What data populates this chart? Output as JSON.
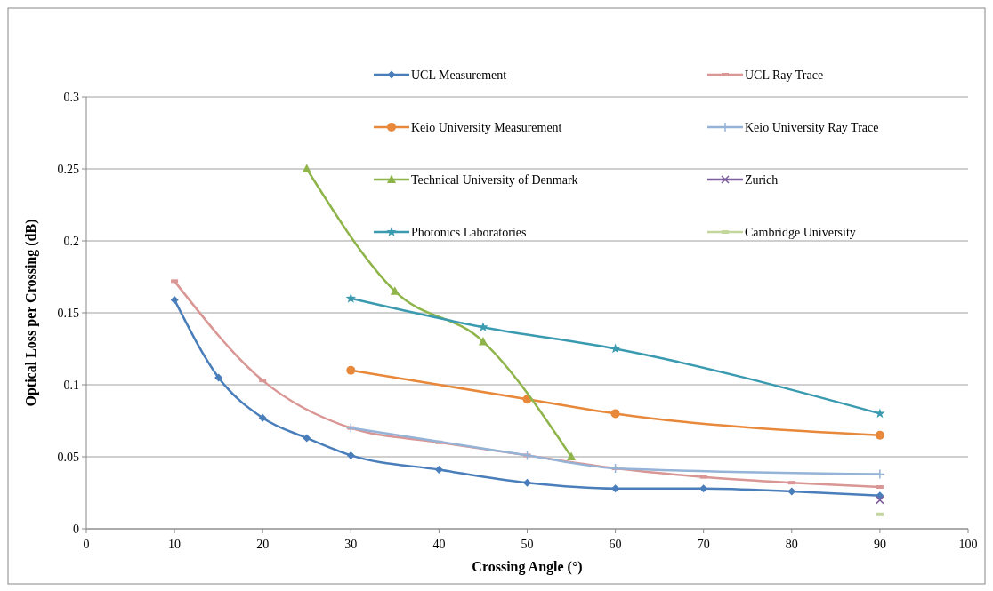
{
  "chart_data": {
    "type": "line",
    "xlabel": "Crossing Angle (°)",
    "ylabel": "Optical Loss per Crossing (dB)",
    "xlim": [
      0,
      100
    ],
    "xticks": [
      0,
      10,
      20,
      30,
      40,
      50,
      60,
      70,
      80,
      90,
      100
    ],
    "ylim": [
      0,
      0.3
    ],
    "yticks": [
      0,
      0.05,
      0.1,
      0.15,
      0.2,
      0.25,
      0.3
    ],
    "grid": "y",
    "legend": "top",
    "series": [
      {
        "name": "UCL Measurement",
        "color": "#4a7ebb",
        "marker": "diamond",
        "x": [
          10,
          15,
          20,
          25,
          30,
          40,
          50,
          60,
          70,
          80,
          90
        ],
        "values": [
          0.159,
          0.105,
          0.077,
          0.063,
          0.051,
          0.041,
          0.032,
          0.028,
          0.028,
          0.026,
          0.023
        ]
      },
      {
        "name": "UCL Ray Trace",
        "color": "#d99694",
        "marker": "square",
        "x": [
          10,
          20,
          30,
          40,
          50,
          60,
          70,
          80,
          90
        ],
        "values": [
          0.172,
          0.103,
          0.07,
          0.06,
          0.051,
          0.042,
          0.036,
          0.032,
          0.029
        ]
      },
      {
        "name": "Keio University Measurement",
        "color": "#e8883a",
        "marker": "circle",
        "x": [
          30,
          50,
          60,
          90
        ],
        "values": [
          0.11,
          0.09,
          0.08,
          0.065
        ]
      },
      {
        "name": "Keio University Ray Trace",
        "color": "#95b3d7",
        "marker": "plus",
        "x": [
          30,
          50,
          60,
          90
        ],
        "values": [
          0.07,
          0.051,
          0.042,
          0.038
        ]
      },
      {
        "name": "Technical University of Denmark",
        "color": "#8eb44a",
        "marker": "triangle",
        "x": [
          25,
          35,
          45,
          55
        ],
        "values": [
          0.25,
          0.165,
          0.13,
          0.05
        ]
      },
      {
        "name": "Zurich",
        "color": "#7d5fa0",
        "marker": "cross",
        "x": [
          90
        ],
        "values": [
          0.02
        ]
      },
      {
        "name": "Photonics Laboratories",
        "color": "#3a9bb0",
        "marker": "star",
        "x": [
          30,
          45,
          60,
          90
        ],
        "values": [
          0.16,
          0.14,
          0.125,
          0.08
        ]
      },
      {
        "name": "Cambridge University",
        "color": "#c3d69b",
        "marker": "square",
        "x": [
          90
        ],
        "values": [
          0.01
        ]
      }
    ]
  }
}
